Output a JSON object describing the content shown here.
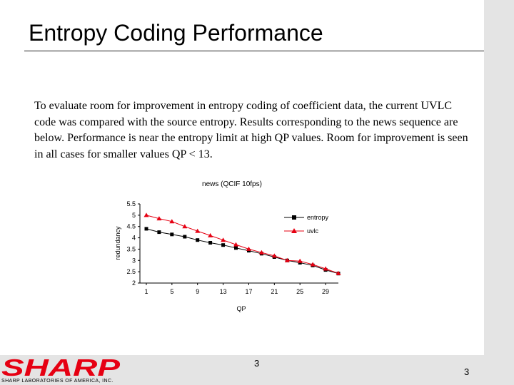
{
  "slide": {
    "title": "Entropy Coding Performance",
    "body": "To evaluate room for improvement in entropy coding of coefficient data, the current UVLC code was compared with the source entropy. Results corresponding to the news sequence are below.  Performance is near the entropy limit at high QP values.  Room for improvement is seen in all cases for smaller values QP < 13.",
    "page_number": "3",
    "page_number_corner": "3"
  },
  "brand": {
    "logo_text": "SHARP",
    "subtitle": "SHARP LABORATORIES OF AMERICA, INC.",
    "logo_color": "#e60012"
  },
  "chart_data": {
    "type": "line",
    "title": "news (QCIF 10fps)",
    "xlabel": "QP",
    "ylabel": "redundancy",
    "xlim": [
      0,
      31
    ],
    "ylim": [
      2,
      5.5
    ],
    "xticks": [
      1,
      5,
      9,
      13,
      17,
      21,
      25,
      29
    ],
    "yticks": [
      2,
      2.5,
      3,
      3.5,
      4,
      4.5,
      5,
      5.5
    ],
    "grid": false,
    "legend_position": "top-right",
    "series": [
      {
        "name": "entropy",
        "marker": "square",
        "color": "#000000",
        "x": [
          1,
          3,
          5,
          7,
          9,
          11,
          13,
          15,
          17,
          19,
          21,
          23,
          25,
          27,
          29,
          31
        ],
        "y": [
          4.4,
          4.25,
          4.15,
          4.05,
          3.9,
          3.78,
          3.68,
          3.55,
          3.43,
          3.3,
          3.15,
          3.0,
          2.9,
          2.78,
          2.58,
          2.42
        ]
      },
      {
        "name": "uvlc",
        "marker": "triangle",
        "color": "#e60012",
        "x": [
          1,
          3,
          5,
          7,
          9,
          11,
          13,
          15,
          17,
          19,
          21,
          23,
          25,
          27,
          29,
          31
        ],
        "y": [
          5.0,
          4.85,
          4.72,
          4.5,
          4.3,
          4.1,
          3.9,
          3.7,
          3.5,
          3.35,
          3.2,
          3.0,
          2.97,
          2.82,
          2.63,
          2.43
        ]
      }
    ]
  }
}
